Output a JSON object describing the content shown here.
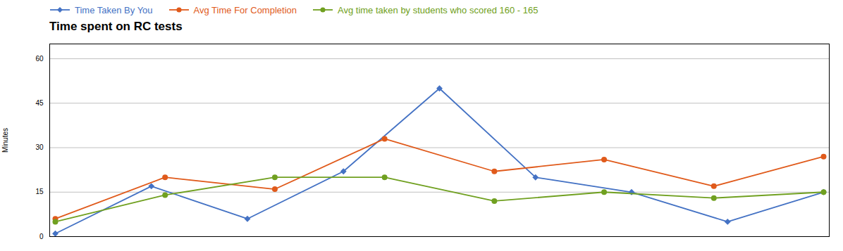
{
  "chart_data": {
    "type": "line",
    "title": "Time spent on RC tests",
    "y_label": "Minutes",
    "ylim": [
      0,
      65
    ],
    "yticks": [
      0,
      15,
      30,
      45,
      60
    ],
    "grid": true,
    "legend": "top",
    "tick_labels": "y",
    "series": [
      {
        "name": "Time Taken By You",
        "color": "#4472C4",
        "marker": "diamond",
        "values": [
          1,
          17,
          6,
          22,
          50,
          20,
          15,
          5,
          15
        ]
      },
      {
        "name": "Avg Time For Completion",
        "color": "#E05A1B",
        "marker": "circle",
        "values": [
          6,
          20,
          16,
          33,
          22,
          26,
          17,
          27
        ]
      },
      {
        "name": "Avg time taken by students who scored 160 - 165",
        "color": "#70A020",
        "marker": "circle",
        "values": [
          5,
          14,
          20,
          20,
          12,
          15,
          13,
          15
        ]
      }
    ]
  }
}
